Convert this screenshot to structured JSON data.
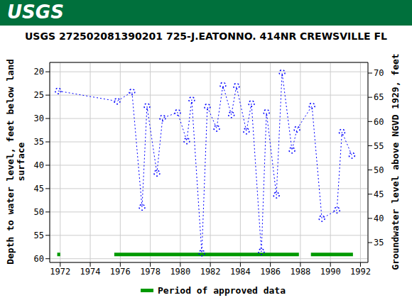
{
  "chart_data": {
    "type": "line",
    "logo": "USGS",
    "title": "USGS 272502081390201 725-J.EATONNO. 414NR CREWSVILLE FL",
    "y_label": "Depth to water level, feet below land surface",
    "y2_label": "Groundwater level above NGVD 1929, feet",
    "x": [
      1971.86,
      1975.79,
      1976.78,
      1977.45,
      1977.78,
      1978.44,
      1978.82,
      1979.82,
      1980.43,
      1980.76,
      1981.43,
      1981.8,
      1982.42,
      1982.84,
      1983.4,
      1983.74,
      1984.4,
      1984.74,
      1985.4,
      1985.74,
      1986.4,
      1986.78,
      1987.44,
      1987.77,
      1988.77,
      1989.43,
      1990.43,
      1990.77,
      1991.43
    ],
    "series": [
      {
        "color": "#0000ff",
        "marker": "circle",
        "line_style": "dotted",
        "values": [
          24.1,
          26.3,
          24.3,
          49.0,
          27.4,
          41.7,
          29.9,
          28.7,
          34.8,
          26.0,
          58.8,
          27.5,
          32.1,
          22.9,
          29.2,
          23.1,
          32.7,
          26.8,
          58.5,
          28.7,
          46.4,
          20.2,
          36.8,
          32.3,
          27.3,
          51.4,
          49.6,
          32.9,
          37.9
        ]
      }
    ],
    "approved_periods": {
      "name": "Period of approved data",
      "color": "#009900",
      "ranges": [
        [
          1971.8,
          1972.0
        ],
        [
          1975.6,
          1987.9
        ],
        [
          1988.7,
          1991.5
        ]
      ]
    },
    "xlim": [
      1971.3,
      1992.5
    ],
    "xticks": [
      1972,
      1974,
      1976,
      1978,
      1980,
      1982,
      1984,
      1986,
      1988,
      1990,
      1992
    ],
    "ylim": [
      60.8,
      18
    ],
    "yticks": [
      20,
      25,
      30,
      35,
      40,
      45,
      50,
      55,
      60
    ],
    "y2lim": [
      30.9,
      72.2
    ],
    "y2ticks": [
      35,
      40,
      45,
      50,
      55,
      60,
      65,
      70
    ],
    "grid": true
  }
}
